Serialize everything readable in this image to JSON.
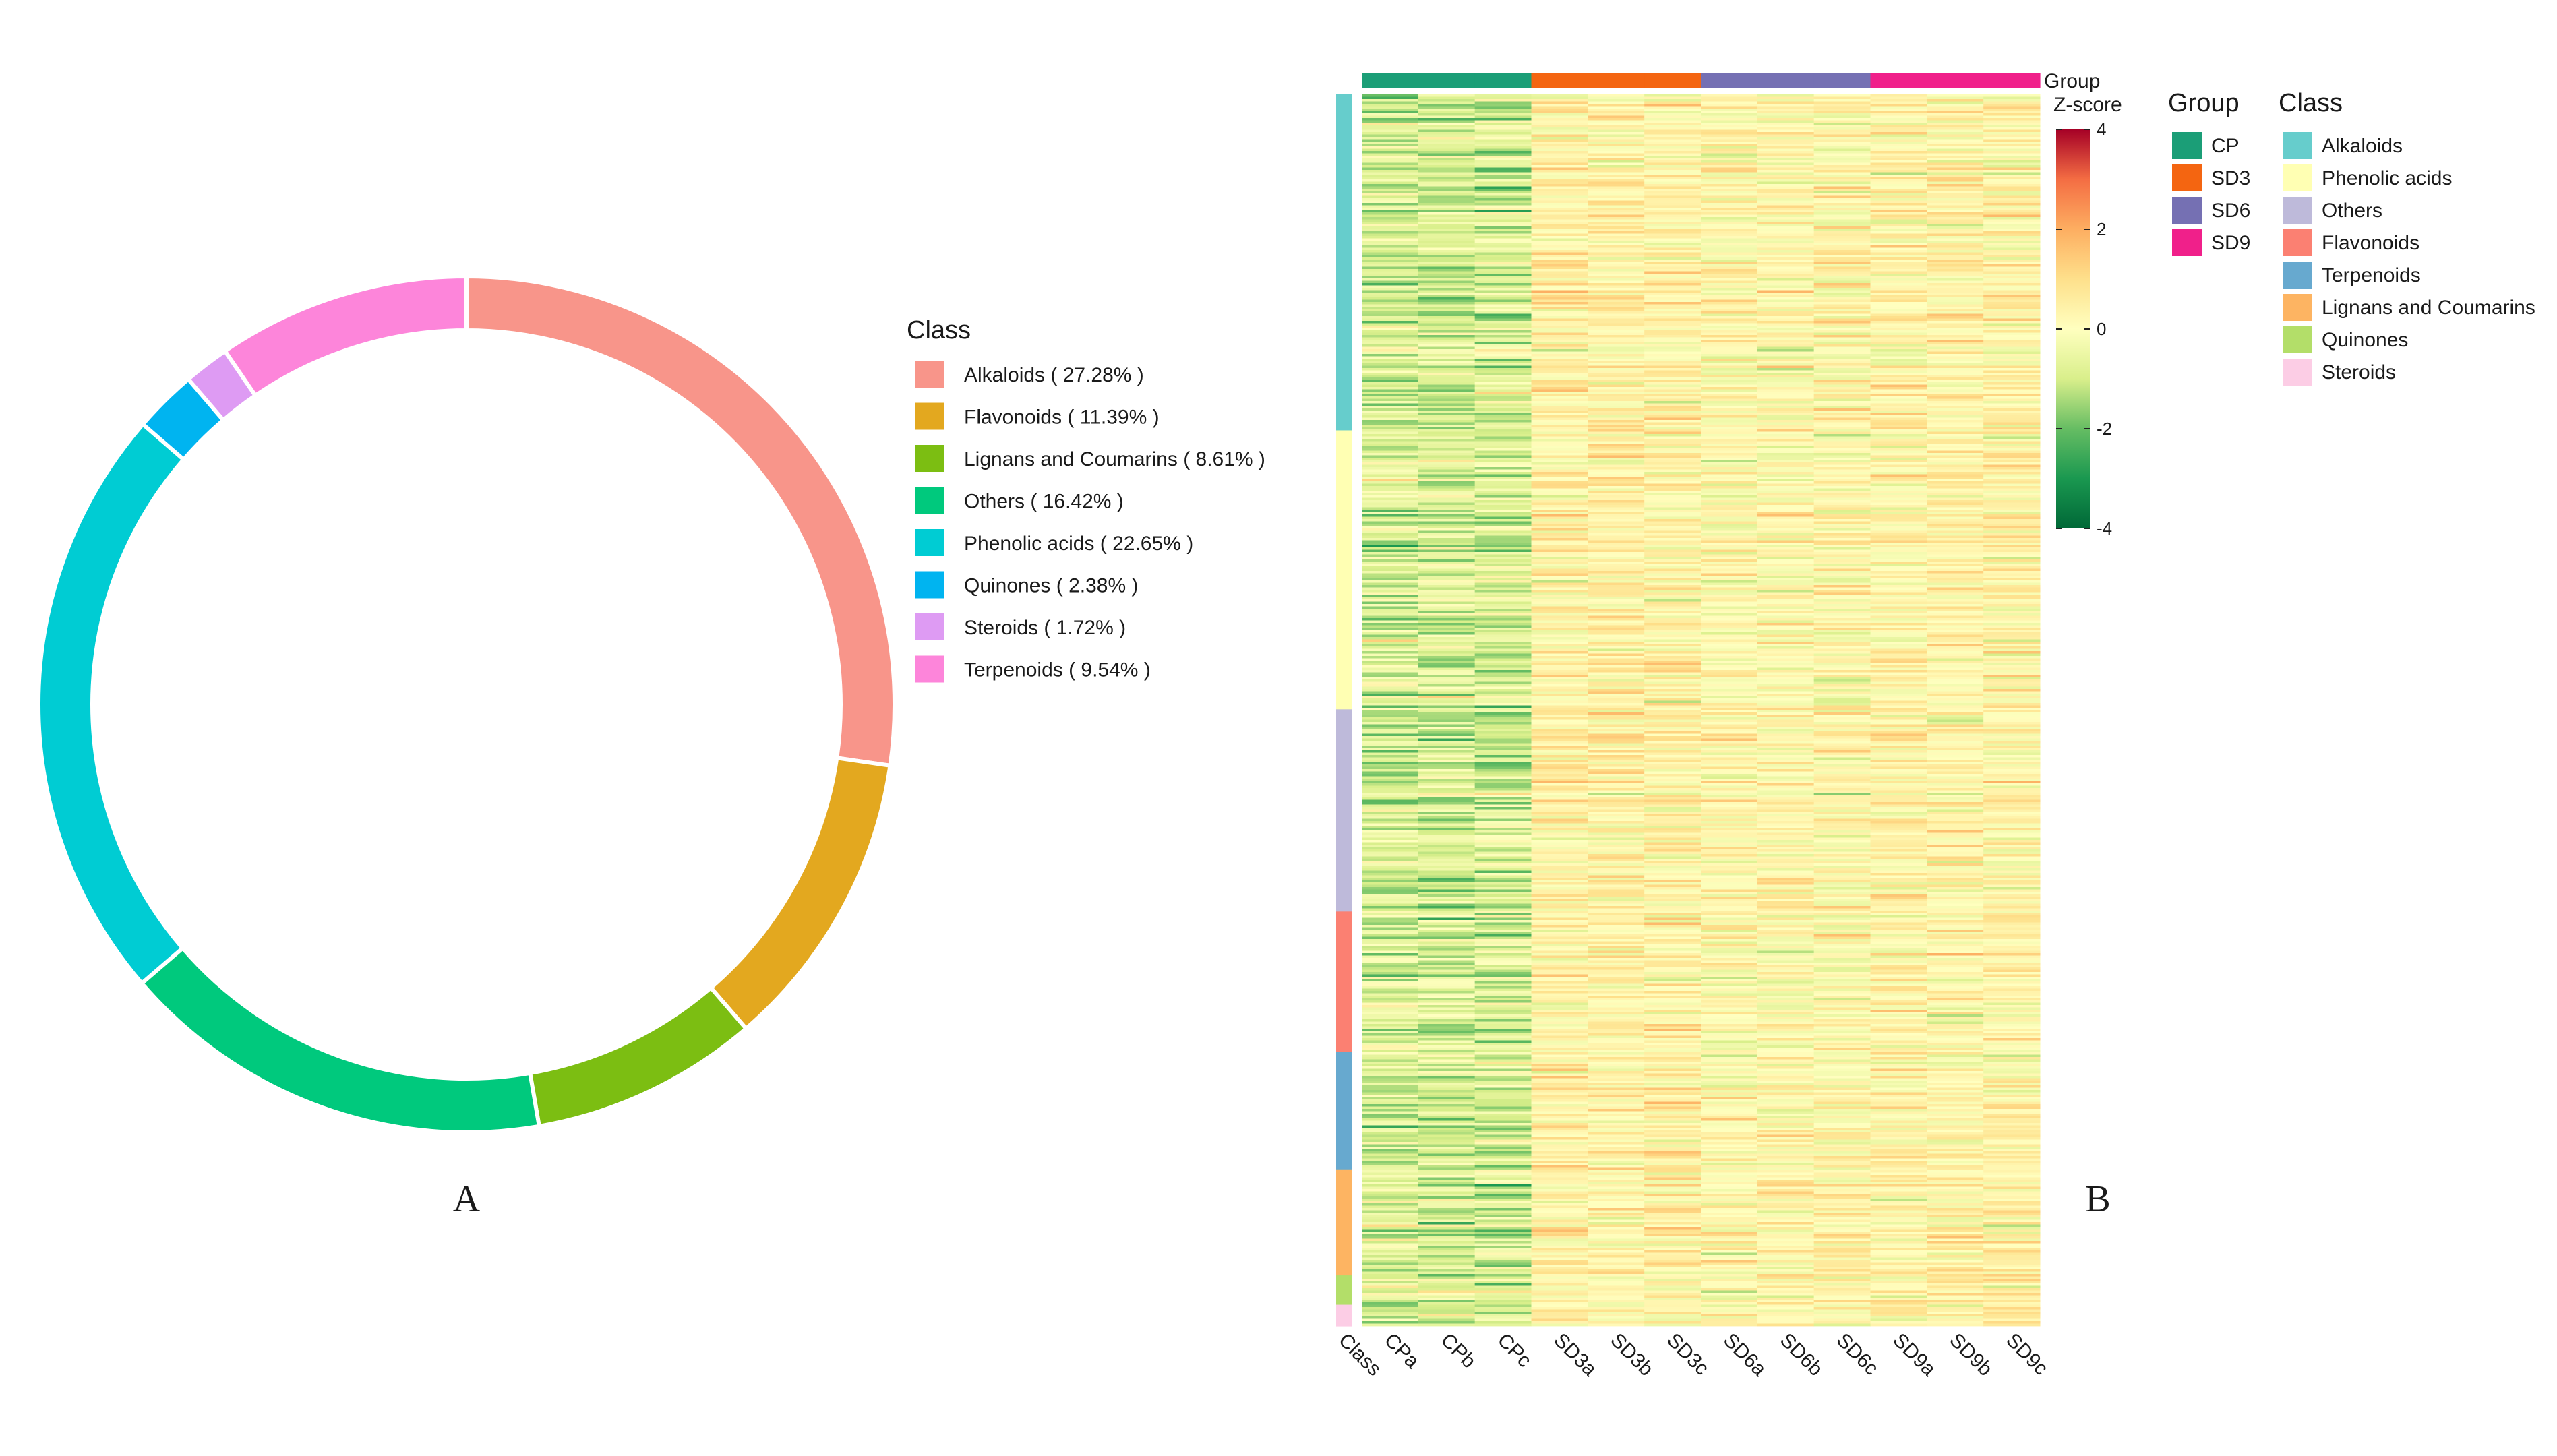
{
  "panel_labels": {
    "a": "A",
    "b": "B"
  },
  "chart_data": [
    {
      "type": "pie",
      "variant": "donut",
      "legend_title": "Class",
      "legend_position": "right",
      "slices": [
        {
          "label": "Alkaloids ( 27.28% )",
          "name": "Alkaloids",
          "value": 27.28,
          "color": "#F8958A"
        },
        {
          "label": "Flavonoids ( 11.39% )",
          "name": "Flavonoids",
          "value": 11.39,
          "color": "#E3A81F"
        },
        {
          "label": "Lignans and Coumarins ( 8.61% )",
          "name": "Lignans and Coumarins",
          "value": 8.61,
          "color": "#7CBE12"
        },
        {
          "label": "Others ( 16.42% )",
          "name": "Others",
          "value": 16.42,
          "color": "#00C97D"
        },
        {
          "label": "Phenolic acids ( 22.65% )",
          "name": "Phenolic acids",
          "value": 22.65,
          "color": "#00CCD3"
        },
        {
          "label": "Quinones ( 2.38% )",
          "name": "Quinones",
          "value": 2.38,
          "color": "#00B4F0"
        },
        {
          "label": "Steroids ( 1.72% )",
          "name": "Steroids",
          "value": 1.72,
          "color": "#DE9BF3"
        },
        {
          "label": "Terpenoids ( 9.54% )",
          "name": "Terpenoids",
          "value": 9.54,
          "color": "#FD85DA"
        }
      ]
    },
    {
      "type": "heatmap",
      "columns": [
        "CPa",
        "CPb",
        "CPc",
        "SD3a",
        "SD3b",
        "SD3c",
        "SD6a",
        "SD6b",
        "SD6c",
        "SD9a",
        "SD9b",
        "SD9c"
      ],
      "column_groups": [
        "CP",
        "CP",
        "CP",
        "SD3",
        "SD3",
        "SD3",
        "SD6",
        "SD6",
        "SD6",
        "SD9",
        "SD9",
        "SD9"
      ],
      "row_annotation_label": "Class",
      "column_annotation_label": "Group",
      "scale": {
        "title": "Z-score",
        "range": [
          -4,
          4
        ],
        "ticks": [
          4,
          2,
          0,
          -2,
          -4
        ],
        "tick_labels": [
          "4",
          "2",
          "0",
          "-2",
          "-4"
        ],
        "colors": [
          "#006837",
          "#1A9850",
          "#66BD63",
          "#D9EF8B",
          "#FFFFBF",
          "#FEE08B",
          "#FDAE61",
          "#F46D43",
          "#A50026"
        ]
      },
      "group_legend": {
        "title": "Group",
        "items": [
          {
            "label": "CP",
            "color": "#1B9E77"
          },
          {
            "label": "SD3",
            "color": "#F46511"
          },
          {
            "label": "SD6",
            "color": "#7570B3"
          },
          {
            "label": "SD9",
            "color": "#F0208A"
          }
        ]
      },
      "class_legend": {
        "title": "Class",
        "items": [
          {
            "label": "Alkaloids",
            "color": "#66CDCC",
            "share": 27.28
          },
          {
            "label": "Phenolic acids",
            "color": "#FFFFB3",
            "share": 22.65
          },
          {
            "label": "Others",
            "color": "#BEBADA",
            "share": 16.42
          },
          {
            "label": "Flavonoids",
            "color": "#FB8072",
            "share": 11.39
          },
          {
            "label": "Terpenoids",
            "color": "#67A9CF",
            "share": 9.54
          },
          {
            "label": "Lignans and Coumarins",
            "color": "#FDB462",
            "share": 8.61
          },
          {
            "label": "Quinones",
            "color": "#B3DE69",
            "share": 2.38
          },
          {
            "label": "Steroids",
            "color": "#FCCDE5",
            "share": 1.72
          }
        ]
      }
    }
  ]
}
